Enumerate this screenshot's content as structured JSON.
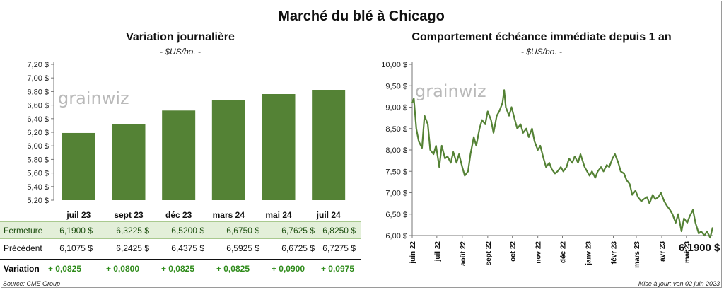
{
  "title": "Marché du blé à Chicago",
  "left_panel": {
    "title": "Variation  journalière",
    "subtitle": "- $US/bo. -"
  },
  "right_panel": {
    "title": "Comportement  échéance immédiate depuis 1 an",
    "subtitle": "- $US/bo. -",
    "final_label": "6,1900 $"
  },
  "watermark": "grainwiz",
  "table": {
    "rows": [
      {
        "label": "Fermeture",
        "values": [
          "6,1900  $",
          "6,3225  $",
          "6,5200  $",
          "6,6750  $",
          "6,7625  $",
          "6,8250  $"
        ]
      },
      {
        "label": "Précédent",
        "values": [
          "6,1075  $",
          "6,2425  $",
          "6,4375  $",
          "6,5925  $",
          "6,6725  $",
          "6,7275  $"
        ]
      },
      {
        "label": "Variation",
        "values": [
          "+ 0,0825",
          "+ 0,0800",
          "+ 0,0825",
          "+ 0,0825",
          "+ 0,0900",
          "+ 0,0975"
        ]
      }
    ]
  },
  "footer": {
    "source": "Source: CME Group",
    "updated": "Mise à jour: ven 02 juin 2023"
  },
  "colors": {
    "bar": "#548235",
    "line": "#548235",
    "table_highlight": "#e3efd9",
    "positive": "#2e8b1a"
  },
  "chart_data": [
    {
      "type": "bar",
      "title": "Variation  journalière",
      "subtitle": "- $US/bo. -",
      "categories": [
        "juil 23",
        "sept 23",
        "déc 23",
        "mars 24",
        "mai 24",
        "juil 24"
      ],
      "values": [
        6.19,
        6.3225,
        6.52,
        6.675,
        6.7625,
        6.825
      ],
      "ylim": [
        5.2,
        7.2
      ],
      "yticks": [
        5.2,
        5.4,
        5.6,
        5.8,
        6.0,
        6.2,
        6.4,
        6.6,
        6.8,
        7.0,
        7.2
      ],
      "ytick_labels": [
        "5,20 $",
        "5,40 $",
        "5,60 $",
        "5,80 $",
        "6,00 $",
        "6,20 $",
        "6,40 $",
        "6,60 $",
        "6,80 $",
        "7,00 $",
        "7,20 $"
      ],
      "grid": false
    },
    {
      "type": "line",
      "title": "Comportement  échéance immédiate depuis 1 an",
      "subtitle": "- $US/bo. -",
      "ylim": [
        6.0,
        10.0
      ],
      "yticks": [
        6.0,
        6.5,
        7.0,
        7.5,
        8.0,
        8.5,
        9.0,
        9.5,
        10.0
      ],
      "ytick_labels": [
        "6,00 $",
        "6,50 $",
        "7,00 $",
        "7,50 $",
        "8,00 $",
        "8,50 $",
        "9,00 $",
        "9,50 $",
        "10,00 $"
      ],
      "xrange": [
        "2022-06-01",
        "2023-06-02"
      ],
      "xticks": [
        {
          "date": "2022-06-01",
          "label": "juin 22"
        },
        {
          "date": "2022-07-01",
          "label": "juil 22"
        },
        {
          "date": "2022-08-01",
          "label": "août 22"
        },
        {
          "date": "2022-09-01",
          "label": "sept 22"
        },
        {
          "date": "2022-10-01",
          "label": "oct 22"
        },
        {
          "date": "2022-11-01",
          "label": "nov 22"
        },
        {
          "date": "2022-12-01",
          "label": "déc 22"
        },
        {
          "date": "2023-01-01",
          "label": "janv 23"
        },
        {
          "date": "2023-02-01",
          "label": "févr 23"
        },
        {
          "date": "2023-03-01",
          "label": "mars 23"
        },
        {
          "date": "2023-04-01",
          "label": "avr 23"
        },
        {
          "date": "2023-05-01",
          "label": "mai 23"
        }
      ],
      "grid": false,
      "series": [
        {
          "points": [
            [
              "2022-06-01",
              9.1
            ],
            [
              "2022-06-03",
              9.2
            ],
            [
              "2022-06-06",
              8.5
            ],
            [
              "2022-06-09",
              8.2
            ],
            [
              "2022-06-13",
              8.05
            ],
            [
              "2022-06-16",
              8.8
            ],
            [
              "2022-06-20",
              8.6
            ],
            [
              "2022-06-23",
              8.0
            ],
            [
              "2022-06-27",
              7.9
            ],
            [
              "2022-06-30",
              8.1
            ],
            [
              "2022-07-04",
              7.6
            ],
            [
              "2022-07-07",
              8.1
            ],
            [
              "2022-07-11",
              7.8
            ],
            [
              "2022-07-14",
              7.85
            ],
            [
              "2022-07-18",
              7.7
            ],
            [
              "2022-07-21",
              7.95
            ],
            [
              "2022-07-25",
              7.7
            ],
            [
              "2022-07-28",
              7.9
            ],
            [
              "2022-08-01",
              7.6
            ],
            [
              "2022-08-04",
              7.4
            ],
            [
              "2022-08-08",
              7.5
            ],
            [
              "2022-08-11",
              7.9
            ],
            [
              "2022-08-15",
              8.3
            ],
            [
              "2022-08-18",
              8.1
            ],
            [
              "2022-08-22",
              8.5
            ],
            [
              "2022-08-25",
              8.7
            ],
            [
              "2022-08-29",
              8.6
            ],
            [
              "2022-09-01",
              8.9
            ],
            [
              "2022-09-05",
              8.7
            ],
            [
              "2022-09-08",
              8.4
            ],
            [
              "2022-09-12",
              8.8
            ],
            [
              "2022-09-15",
              8.9
            ],
            [
              "2022-09-19",
              9.1
            ],
            [
              "2022-09-21",
              9.4
            ],
            [
              "2022-09-23",
              9.0
            ],
            [
              "2022-09-27",
              8.8
            ],
            [
              "2022-09-30",
              9.0
            ],
            [
              "2022-10-04",
              8.7
            ],
            [
              "2022-10-07",
              8.5
            ],
            [
              "2022-10-11",
              8.6
            ],
            [
              "2022-10-14",
              8.4
            ],
            [
              "2022-10-18",
              8.5
            ],
            [
              "2022-10-21",
              8.3
            ],
            [
              "2022-10-25",
              8.5
            ],
            [
              "2022-10-28",
              8.2
            ],
            [
              "2022-11-01",
              8.0
            ],
            [
              "2022-11-04",
              8.1
            ],
            [
              "2022-11-08",
              7.8
            ],
            [
              "2022-11-11",
              7.6
            ],
            [
              "2022-11-15",
              7.7
            ],
            [
              "2022-11-18",
              7.55
            ],
            [
              "2022-11-22",
              7.45
            ],
            [
              "2022-11-25",
              7.5
            ],
            [
              "2022-11-29",
              7.6
            ],
            [
              "2022-12-02",
              7.5
            ],
            [
              "2022-12-06",
              7.6
            ],
            [
              "2022-12-09",
              7.8
            ],
            [
              "2022-12-13",
              7.7
            ],
            [
              "2022-12-16",
              7.85
            ],
            [
              "2022-12-20",
              7.7
            ],
            [
              "2022-12-23",
              7.9
            ],
            [
              "2022-12-28",
              7.6
            ],
            [
              "2023-01-03",
              7.4
            ],
            [
              "2023-01-06",
              7.5
            ],
            [
              "2023-01-10",
              7.35
            ],
            [
              "2023-01-13",
              7.5
            ],
            [
              "2023-01-17",
              7.6
            ],
            [
              "2023-01-20",
              7.5
            ],
            [
              "2023-01-24",
              7.65
            ],
            [
              "2023-01-27",
              7.6
            ],
            [
              "2023-01-31",
              7.8
            ],
            [
              "2023-02-03",
              7.9
            ],
            [
              "2023-02-07",
              7.7
            ],
            [
              "2023-02-10",
              7.5
            ],
            [
              "2023-02-14",
              7.45
            ],
            [
              "2023-02-17",
              7.3
            ],
            [
              "2023-02-21",
              7.2
            ],
            [
              "2023-02-24",
              6.95
            ],
            [
              "2023-02-28",
              7.05
            ],
            [
              "2023-03-03",
              6.9
            ],
            [
              "2023-03-07",
              6.8
            ],
            [
              "2023-03-10",
              6.85
            ],
            [
              "2023-03-14",
              6.9
            ],
            [
              "2023-03-17",
              6.75
            ],
            [
              "2023-03-21",
              6.95
            ],
            [
              "2023-03-24",
              6.85
            ],
            [
              "2023-03-28",
              6.9
            ],
            [
              "2023-03-31",
              7.0
            ],
            [
              "2023-04-04",
              6.8
            ],
            [
              "2023-04-07",
              6.7
            ],
            [
              "2023-04-11",
              6.6
            ],
            [
              "2023-04-14",
              6.5
            ],
            [
              "2023-04-18",
              6.3
            ],
            [
              "2023-04-21",
              6.5
            ],
            [
              "2023-04-25",
              6.1
            ],
            [
              "2023-04-28",
              6.4
            ],
            [
              "2023-05-02",
              6.3
            ],
            [
              "2023-05-05",
              6.45
            ],
            [
              "2023-05-09",
              6.6
            ],
            [
              "2023-05-12",
              6.3
            ],
            [
              "2023-05-16",
              6.05
            ],
            [
              "2023-05-19",
              6.1
            ],
            [
              "2023-05-23",
              6.0
            ],
            [
              "2023-05-26",
              6.1
            ],
            [
              "2023-05-30",
              5.95
            ],
            [
              "2023-06-02",
              6.19
            ]
          ]
        }
      ]
    }
  ]
}
